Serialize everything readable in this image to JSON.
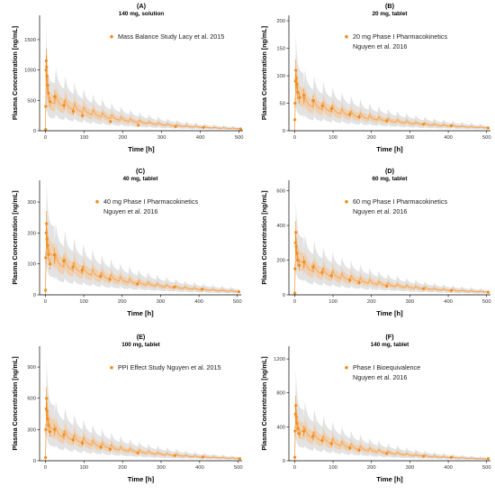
{
  "colors": {
    "observed": "#f28e1c",
    "model_line": "#f5a04a",
    "band_outer": "#d9d9d9",
    "band_inner": "#f3c79a",
    "axis": "#000000"
  },
  "chart_data": [
    {
      "type": "line",
      "panel_label": "(A)",
      "title": "140 mg, solution",
      "xlabel": "Time [h]",
      "ylabel": "Plasma Concentration [ng/mL]",
      "xlim": [
        -15,
        510
      ],
      "ylim": [
        0,
        1900
      ],
      "xticks": [
        0,
        100,
        200,
        300,
        400,
        500
      ],
      "yticks": [
        0,
        500,
        1000,
        1500
      ],
      "legend": [
        "Mass Balance Study Lacy et al. 2015"
      ],
      "model": {
        "cmax": 1000,
        "tmax": 2,
        "k_alpha": 0.3,
        "alpha_frac": 0.55,
        "trough_start": 450,
        "trough_end": 30,
        "peak_ratio": 1.35
      },
      "observed_x": [
        0.5,
        1,
        1.5,
        2,
        3,
        4,
        6,
        8,
        12,
        24,
        48,
        72,
        96,
        168,
        240,
        336,
        408,
        504
      ],
      "observed_y": [
        20,
        400,
        1000,
        1150,
        1050,
        900,
        750,
        620,
        480,
        560,
        420,
        320,
        250,
        150,
        90,
        70,
        55,
        30
      ]
    },
    {
      "type": "line",
      "panel_label": "(B)",
      "title": "20 mg, tablet",
      "xlabel": "Time [h]",
      "ylabel": "Plasma Concentration [ng/mL]",
      "xlim": [
        -15,
        510
      ],
      "ylim": [
        0,
        210
      ],
      "xticks": [
        0,
        100,
        200,
        300,
        400,
        500
      ],
      "yticks": [
        0,
        50,
        100,
        150,
        200
      ],
      "legend": [
        "20 mg Phase I Pharmacokinetics",
        "Nguyen et al. 2016"
      ],
      "model": {
        "cmax": 100,
        "tmax": 3,
        "k_alpha": 0.25,
        "alpha_frac": 0.4,
        "trough_start": 48,
        "trough_end": 5,
        "peak_ratio": 1.35
      },
      "observed_x": [
        0.5,
        1,
        2,
        3,
        4,
        6,
        8,
        12,
        24,
        48,
        72,
        96,
        144,
        168,
        240,
        336,
        408,
        504
      ],
      "observed_y": [
        20,
        50,
        90,
        110,
        95,
        85,
        70,
        60,
        65,
        55,
        45,
        40,
        30,
        25,
        18,
        12,
        9,
        5
      ]
    },
    {
      "type": "line",
      "panel_label": "(C)",
      "title": "40 mg, tablet",
      "xlabel": "Time [h]",
      "ylabel": "Plasma Concentration [ng/mL]",
      "xlim": [
        -15,
        510
      ],
      "ylim": [
        0,
        370
      ],
      "xticks": [
        0,
        100,
        200,
        300,
        400,
        500
      ],
      "yticks": [
        0,
        100,
        200,
        300
      ],
      "legend": [
        "40 mg Phase I Pharmacokinetics",
        "Nguyen et al. 2016"
      ],
      "model": {
        "cmax": 210,
        "tmax": 3,
        "k_alpha": 0.25,
        "alpha_frac": 0.4,
        "trough_start": 100,
        "trough_end": 10,
        "peak_ratio": 1.35
      },
      "observed_x": [
        0.5,
        1,
        2,
        3,
        4,
        6,
        8,
        12,
        24,
        48,
        72,
        96,
        144,
        168,
        240,
        336,
        408,
        504
      ],
      "observed_y": [
        15,
        120,
        200,
        230,
        180,
        160,
        130,
        100,
        130,
        110,
        90,
        80,
        60,
        50,
        35,
        25,
        18,
        10
      ]
    },
    {
      "type": "line",
      "panel_label": "(D)",
      "title": "60 mg, tablet",
      "xlabel": "Time [h]",
      "ylabel": "Plasma Concentration [ng/mL]",
      "xlim": [
        -15,
        510
      ],
      "ylim": [
        0,
        660
      ],
      "xticks": [
        0,
        100,
        200,
        300,
        400,
        500
      ],
      "yticks": [
        0,
        200,
        400,
        600
      ],
      "legend": [
        "60 mg Phase I Pharmacokinetics",
        "Nguyen et al. 2016"
      ],
      "model": {
        "cmax": 310,
        "tmax": 3,
        "k_alpha": 0.25,
        "alpha_frac": 0.4,
        "trough_start": 150,
        "trough_end": 15,
        "peak_ratio": 1.35
      },
      "observed_x": [
        0.5,
        1,
        2,
        3,
        4,
        6,
        8,
        12,
        24,
        48,
        72,
        96,
        144,
        168,
        240,
        336,
        408,
        504
      ],
      "observed_y": [
        10,
        150,
        300,
        360,
        280,
        240,
        200,
        170,
        190,
        160,
        130,
        110,
        85,
        70,
        50,
        35,
        25,
        15
      ]
    },
    {
      "type": "line",
      "panel_label": "(E)",
      "title": "100 mg, tablet",
      "xlabel": "Time [h]",
      "ylabel": "Plasma Concentration [ng/mL]",
      "xlim": [
        -15,
        510
      ],
      "ylim": [
        0,
        1100
      ],
      "xticks": [
        0,
        100,
        200,
        300,
        400,
        500
      ],
      "yticks": [
        0,
        300,
        600,
        900
      ],
      "legend": [
        "PPI Effect Study Nguyen et al. 2015"
      ],
      "model": {
        "cmax": 550,
        "tmax": 3,
        "k_alpha": 0.25,
        "alpha_frac": 0.45,
        "trough_start": 250,
        "trough_end": 20,
        "peak_ratio": 1.35
      },
      "observed_x": [
        0.5,
        1,
        2,
        3,
        4,
        6,
        8,
        12,
        24,
        48,
        72,
        96,
        144,
        168,
        240,
        336,
        408,
        504
      ],
      "observed_y": [
        30,
        300,
        500,
        600,
        480,
        400,
        340,
        280,
        300,
        250,
        200,
        170,
        130,
        110,
        75,
        50,
        35,
        20
      ]
    },
    {
      "type": "line",
      "panel_label": "(F)",
      "title": "140 mg, tablet",
      "xlabel": "Time [h]",
      "ylabel": "Plasma Concentration [ng/mL]",
      "xlim": [
        -15,
        510
      ],
      "ylim": [
        0,
        1350
      ],
      "xticks": [
        0,
        100,
        200,
        300,
        400,
        500
      ],
      "yticks": [
        0,
        400,
        800,
        1200
      ],
      "legend": [
        "Phase I Bioequivalence",
        "Nguyen et al. 2016"
      ],
      "model": {
        "cmax": 620,
        "tmax": 3,
        "k_alpha": 0.25,
        "alpha_frac": 0.45,
        "trough_start": 300,
        "trough_end": 20,
        "peak_ratio": 1.35
      },
      "observed_x": [
        0.5,
        1,
        2,
        3,
        4,
        6,
        8,
        12,
        24,
        48,
        72,
        96,
        144,
        168,
        240,
        336,
        408,
        504
      ],
      "observed_y": [
        40,
        350,
        550,
        650,
        520,
        440,
        380,
        320,
        350,
        290,
        240,
        200,
        150,
        125,
        85,
        55,
        40,
        25
      ]
    }
  ]
}
